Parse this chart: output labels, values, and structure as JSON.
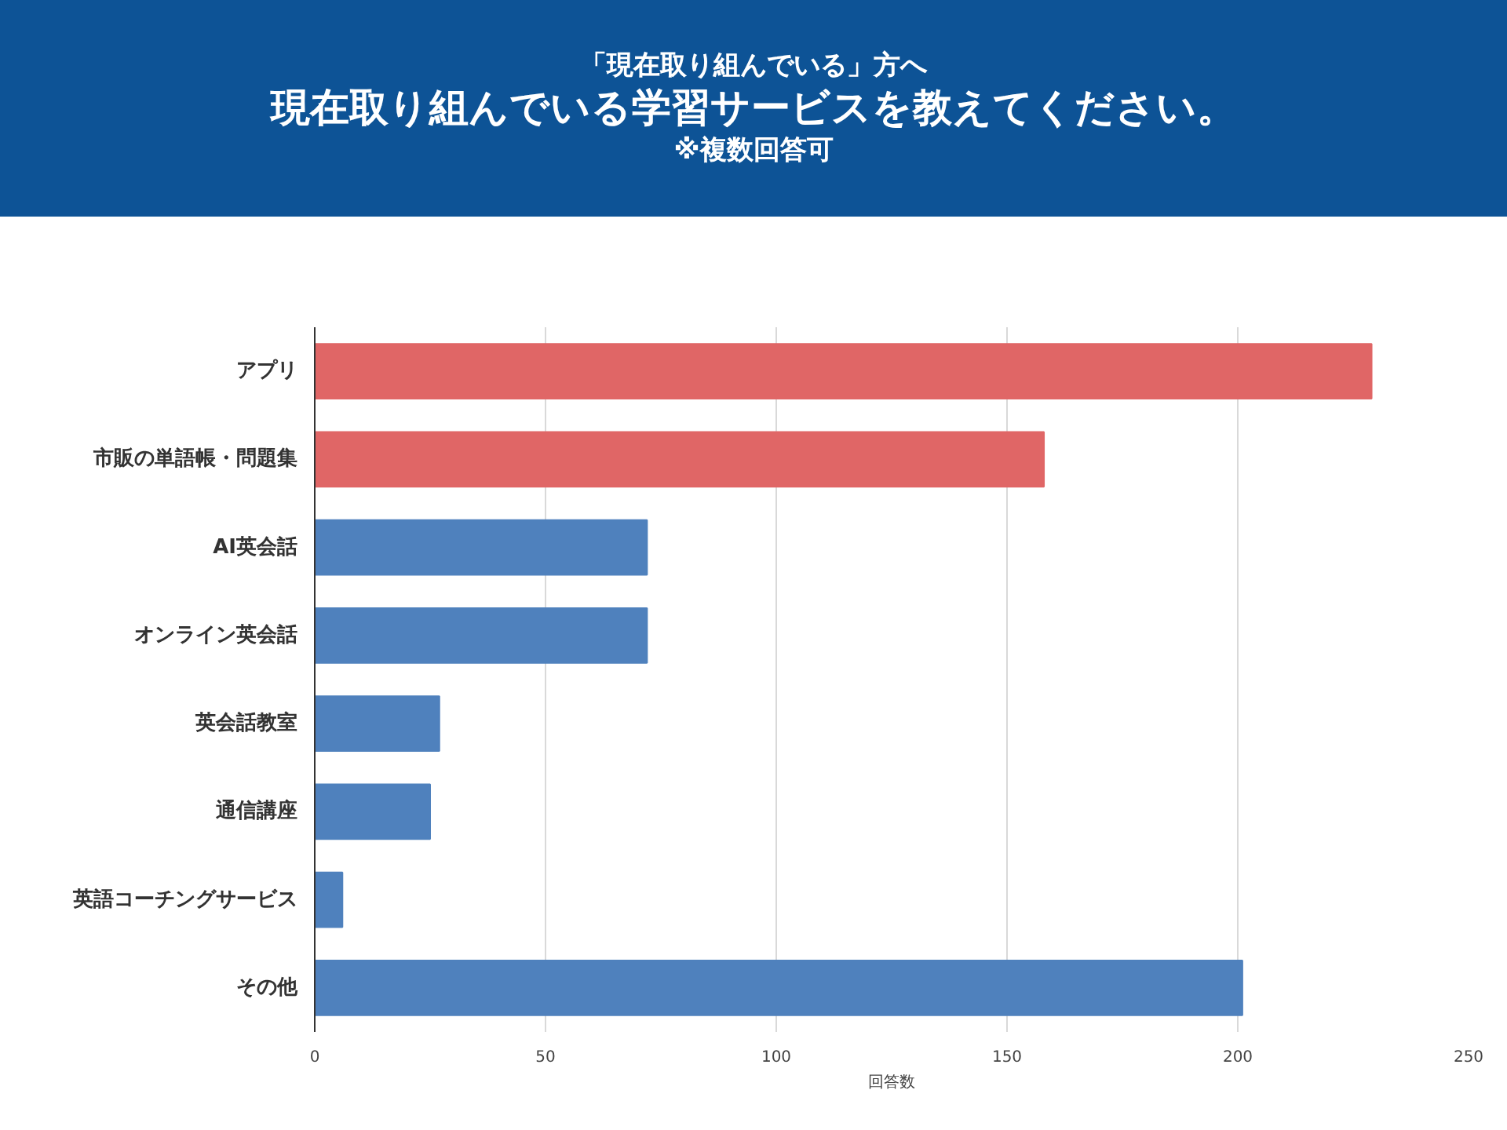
{
  "chart_data": {
    "type": "bar",
    "orientation": "horizontal",
    "subtitle": "「現在取り組んでいる」方へ",
    "title": "現在取り組んでいる学習サービスを教えてください。",
    "annotations": [
      "※複数回答可"
    ],
    "categories": [
      "アプリ",
      "市販の単語帳・問題集",
      "AI英会話",
      "オンライン英会話",
      "英会話教室",
      "通信講座",
      "英語コーチングサービス",
      "その他"
    ],
    "values": [
      229,
      158,
      72,
      72,
      27,
      25,
      6,
      201
    ],
    "colors": [
      "#e06666",
      "#e06666",
      "#4f81bd",
      "#4f81bd",
      "#4f81bd",
      "#4f81bd",
      "#4f81bd",
      "#4f81bd"
    ],
    "xlabel": "回答数",
    "xlim": [
      0,
      250
    ],
    "xticks": [
      0,
      50,
      100,
      150,
      200,
      250
    ],
    "grid": "x"
  }
}
